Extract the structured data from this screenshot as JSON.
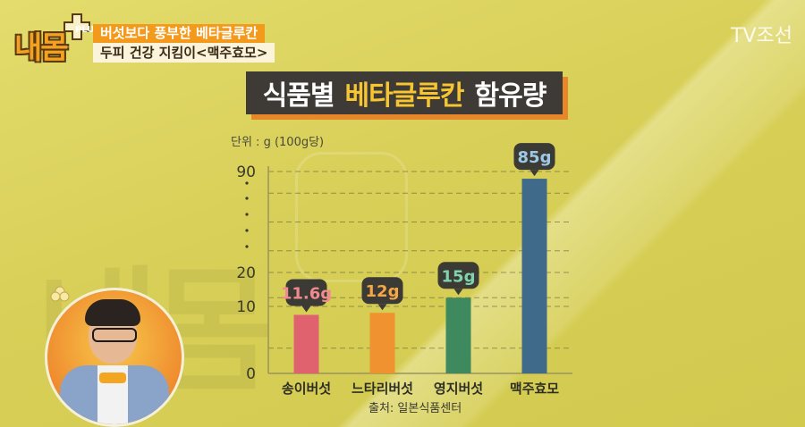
{
  "overlay": {
    "logo": "내몸",
    "logo_plus": "PLUS",
    "caption_line1": "버섯보다 풍부한 베타글루칸",
    "caption_line2": "두피 건강 지킴이<맥주효모>",
    "channel": "TV조선"
  },
  "colors": {
    "background": "#d8d05a",
    "banner": "#3e3a35",
    "banner_accent": "#f6c531",
    "banner_shadow": "#e8872a"
  },
  "chart_data": {
    "type": "bar",
    "title_parts": [
      "식품별",
      "베타글루칸",
      "함유량"
    ],
    "unit_label": "단위 : g (100g당)",
    "source": "출처: 일본식품센터",
    "categories": [
      "송이버섯",
      "느타리버섯",
      "영지버섯",
      "맥주효모"
    ],
    "values": [
      11.6,
      12,
      15,
      85
    ],
    "value_labels": [
      "11.6g",
      "12g",
      "15g",
      "85g"
    ],
    "bar_colors": [
      "#e0626f",
      "#ef922f",
      "#3e8a5e",
      "#3f6a8a"
    ],
    "label_colors": [
      "#f08a8f",
      "#f5a646",
      "#7fd4ad",
      "#9cc9e6"
    ],
    "y_ticks": [
      "0",
      "10",
      "20",
      "90"
    ],
    "y_ticks_scale": [
      0,
      10,
      20,
      90
    ],
    "y_axis_break": true,
    "grid": "dashed"
  }
}
